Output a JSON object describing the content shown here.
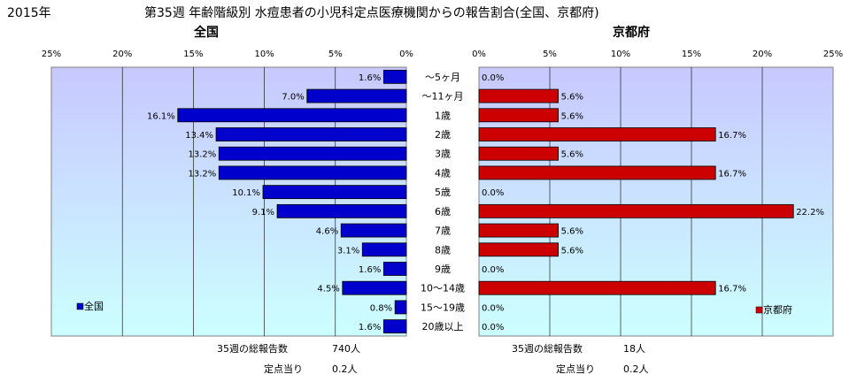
{
  "year_label": "2015年",
  "title": "第35週 年齢階級別 水痘患者の小児科定点医療機関からの報告割合(全国、京都府)",
  "categories": [
    "～5ヶ月",
    "～11ヶ月",
    "1歳",
    "2歳",
    "3歳",
    "4歳",
    "5歳",
    "6歳",
    "7歳",
    "8歳",
    "9歳",
    "10～14歳",
    "15～19歳",
    "20歳以上"
  ],
  "colors": {
    "national_bar": "#0000CC",
    "kyoto_bar": "#CC0000",
    "plot_top": "#C8C8FF",
    "plot_bottom": "#CCFFFF"
  },
  "chart_data": [
    {
      "type": "bar",
      "title": "全国",
      "orientation": "horizontal-left",
      "xlim": [
        0,
        25
      ],
      "x_ticks": [
        "25%",
        "20%",
        "15%",
        "10%",
        "5%",
        "0%"
      ],
      "series": [
        {
          "name": "全国",
          "values": [
            1.6,
            7.0,
            16.1,
            13.4,
            13.2,
            13.2,
            10.1,
            9.1,
            4.6,
            3.1,
            1.6,
            4.5,
            0.8,
            1.6
          ]
        }
      ],
      "value_labels": [
        "1.6%",
        "7.0%",
        "16.1%",
        "13.4%",
        "13.2%",
        "13.2%",
        "10.1%",
        "9.1%",
        "4.6%",
        "3.1%",
        "1.6%",
        "4.5%",
        "0.8%",
        "1.6%"
      ],
      "legend": "bottom-left"
    },
    {
      "type": "bar",
      "title": "京都府",
      "orientation": "horizontal-right",
      "xlim": [
        0,
        25
      ],
      "x_ticks": [
        "0%",
        "5%",
        "10%",
        "15%",
        "20%",
        "25%"
      ],
      "series": [
        {
          "name": "京都府",
          "values": [
            0.0,
            5.6,
            5.6,
            16.7,
            5.6,
            16.7,
            0.0,
            22.2,
            5.6,
            5.6,
            0.0,
            16.7,
            0.0,
            0.0
          ]
        }
      ],
      "value_labels": [
        "0.0%",
        "5.6%",
        "5.6%",
        "16.7%",
        "5.6%",
        "16.7%",
        "0.0%",
        "22.2%",
        "5.6%",
        "5.6%",
        "0.0%",
        "16.7%",
        "0.0%",
        "0.0%"
      ],
      "legend": "bottom-right"
    }
  ],
  "footer": {
    "national_total_label": "35週の総報告数",
    "national_total_value": "740人",
    "national_per_label": "定点当り",
    "national_per_value": "0.2人",
    "kyoto_total_label": "35週の総報告数",
    "kyoto_total_value": "18人",
    "kyoto_per_label": "定点当り",
    "kyoto_per_value": "0.2人"
  }
}
